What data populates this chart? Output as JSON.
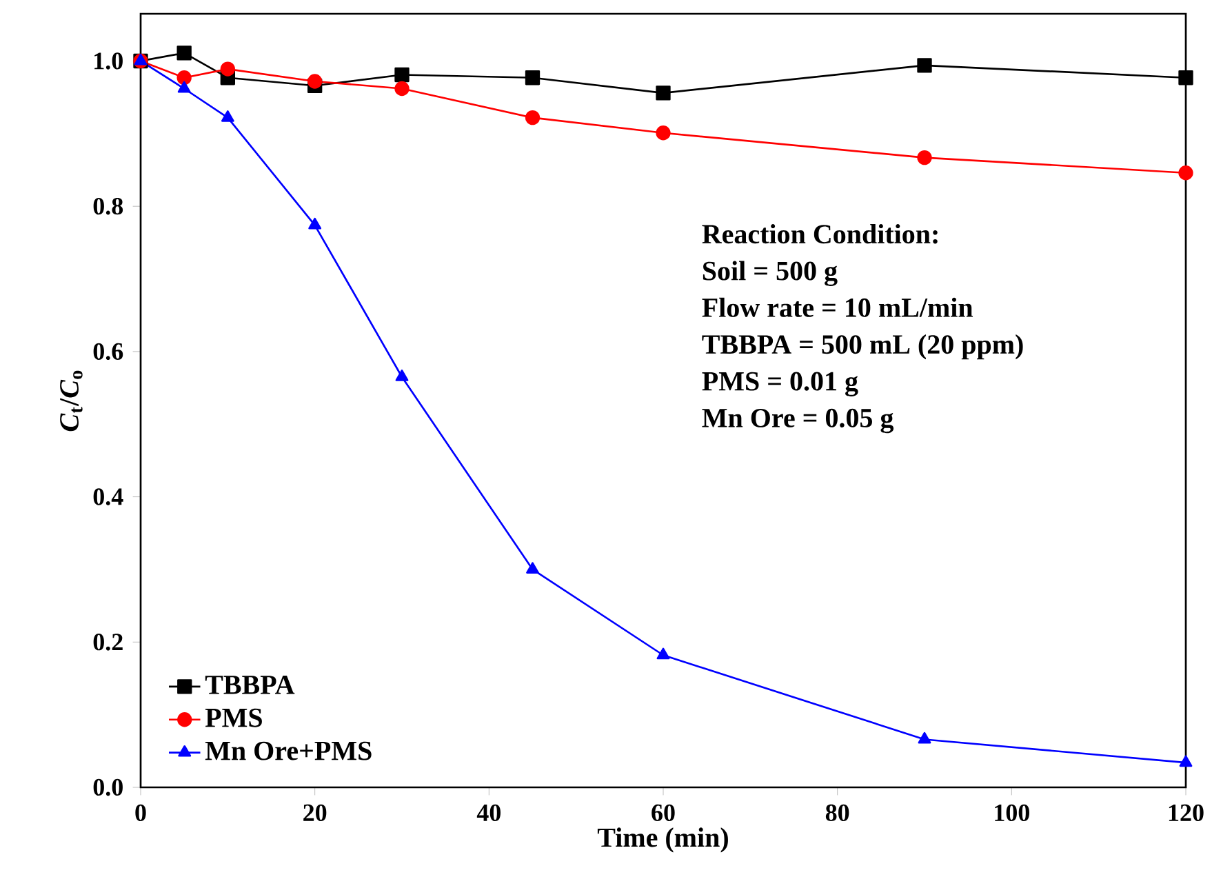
{
  "chart_data": {
    "type": "line",
    "xlabel": "Time (min)",
    "ylabel": "*C*$_{t}$/*C*$_{o}$",
    "xlim": [
      0,
      120
    ],
    "ylim": [
      0,
      1.065
    ],
    "xticks": [
      0,
      20,
      40,
      60,
      80,
      100,
      120
    ],
    "yticks": [
      {
        "value": 0,
        "label": "0.0"
      },
      0.2,
      0.4,
      0.6,
      0.8,
      {
        "value": 1,
        "label": "1.0"
      }
    ],
    "x": [
      0,
      5,
      10,
      20,
      30,
      45,
      60,
      90,
      120
    ],
    "series": [
      {
        "name": "TBBPA",
        "color": "#000000",
        "marker": "square",
        "values": [
          1.0,
          1.011,
          0.977,
          0.966,
          0.981,
          0.977,
          0.956,
          0.994,
          0.977
        ]
      },
      {
        "name": "PMS",
        "color": "#ff0000",
        "marker": "circle",
        "values": [
          1.0,
          0.977,
          0.989,
          0.972,
          0.962,
          0.922,
          0.901,
          0.867,
          0.846
        ]
      },
      {
        "name": "Mn Ore+PMS",
        "color": "#0000ff",
        "marker": "triangle",
        "values": [
          1.0,
          0.962,
          0.922,
          0.774,
          0.565,
          0.3,
          0.182,
          0.066,
          0.034
        ]
      }
    ],
    "annotations": [
      "Reaction Condition:",
      "Soil = 500 g",
      "Flow rate = 10 mL/min",
      "TBBPA = 500 mL (20 ppm)",
      "PMS = 0.01 g",
      "Mn Ore = 0.05 g"
    ],
    "legend": "bottom left",
    "line_style": "solid",
    "grid": false
  }
}
